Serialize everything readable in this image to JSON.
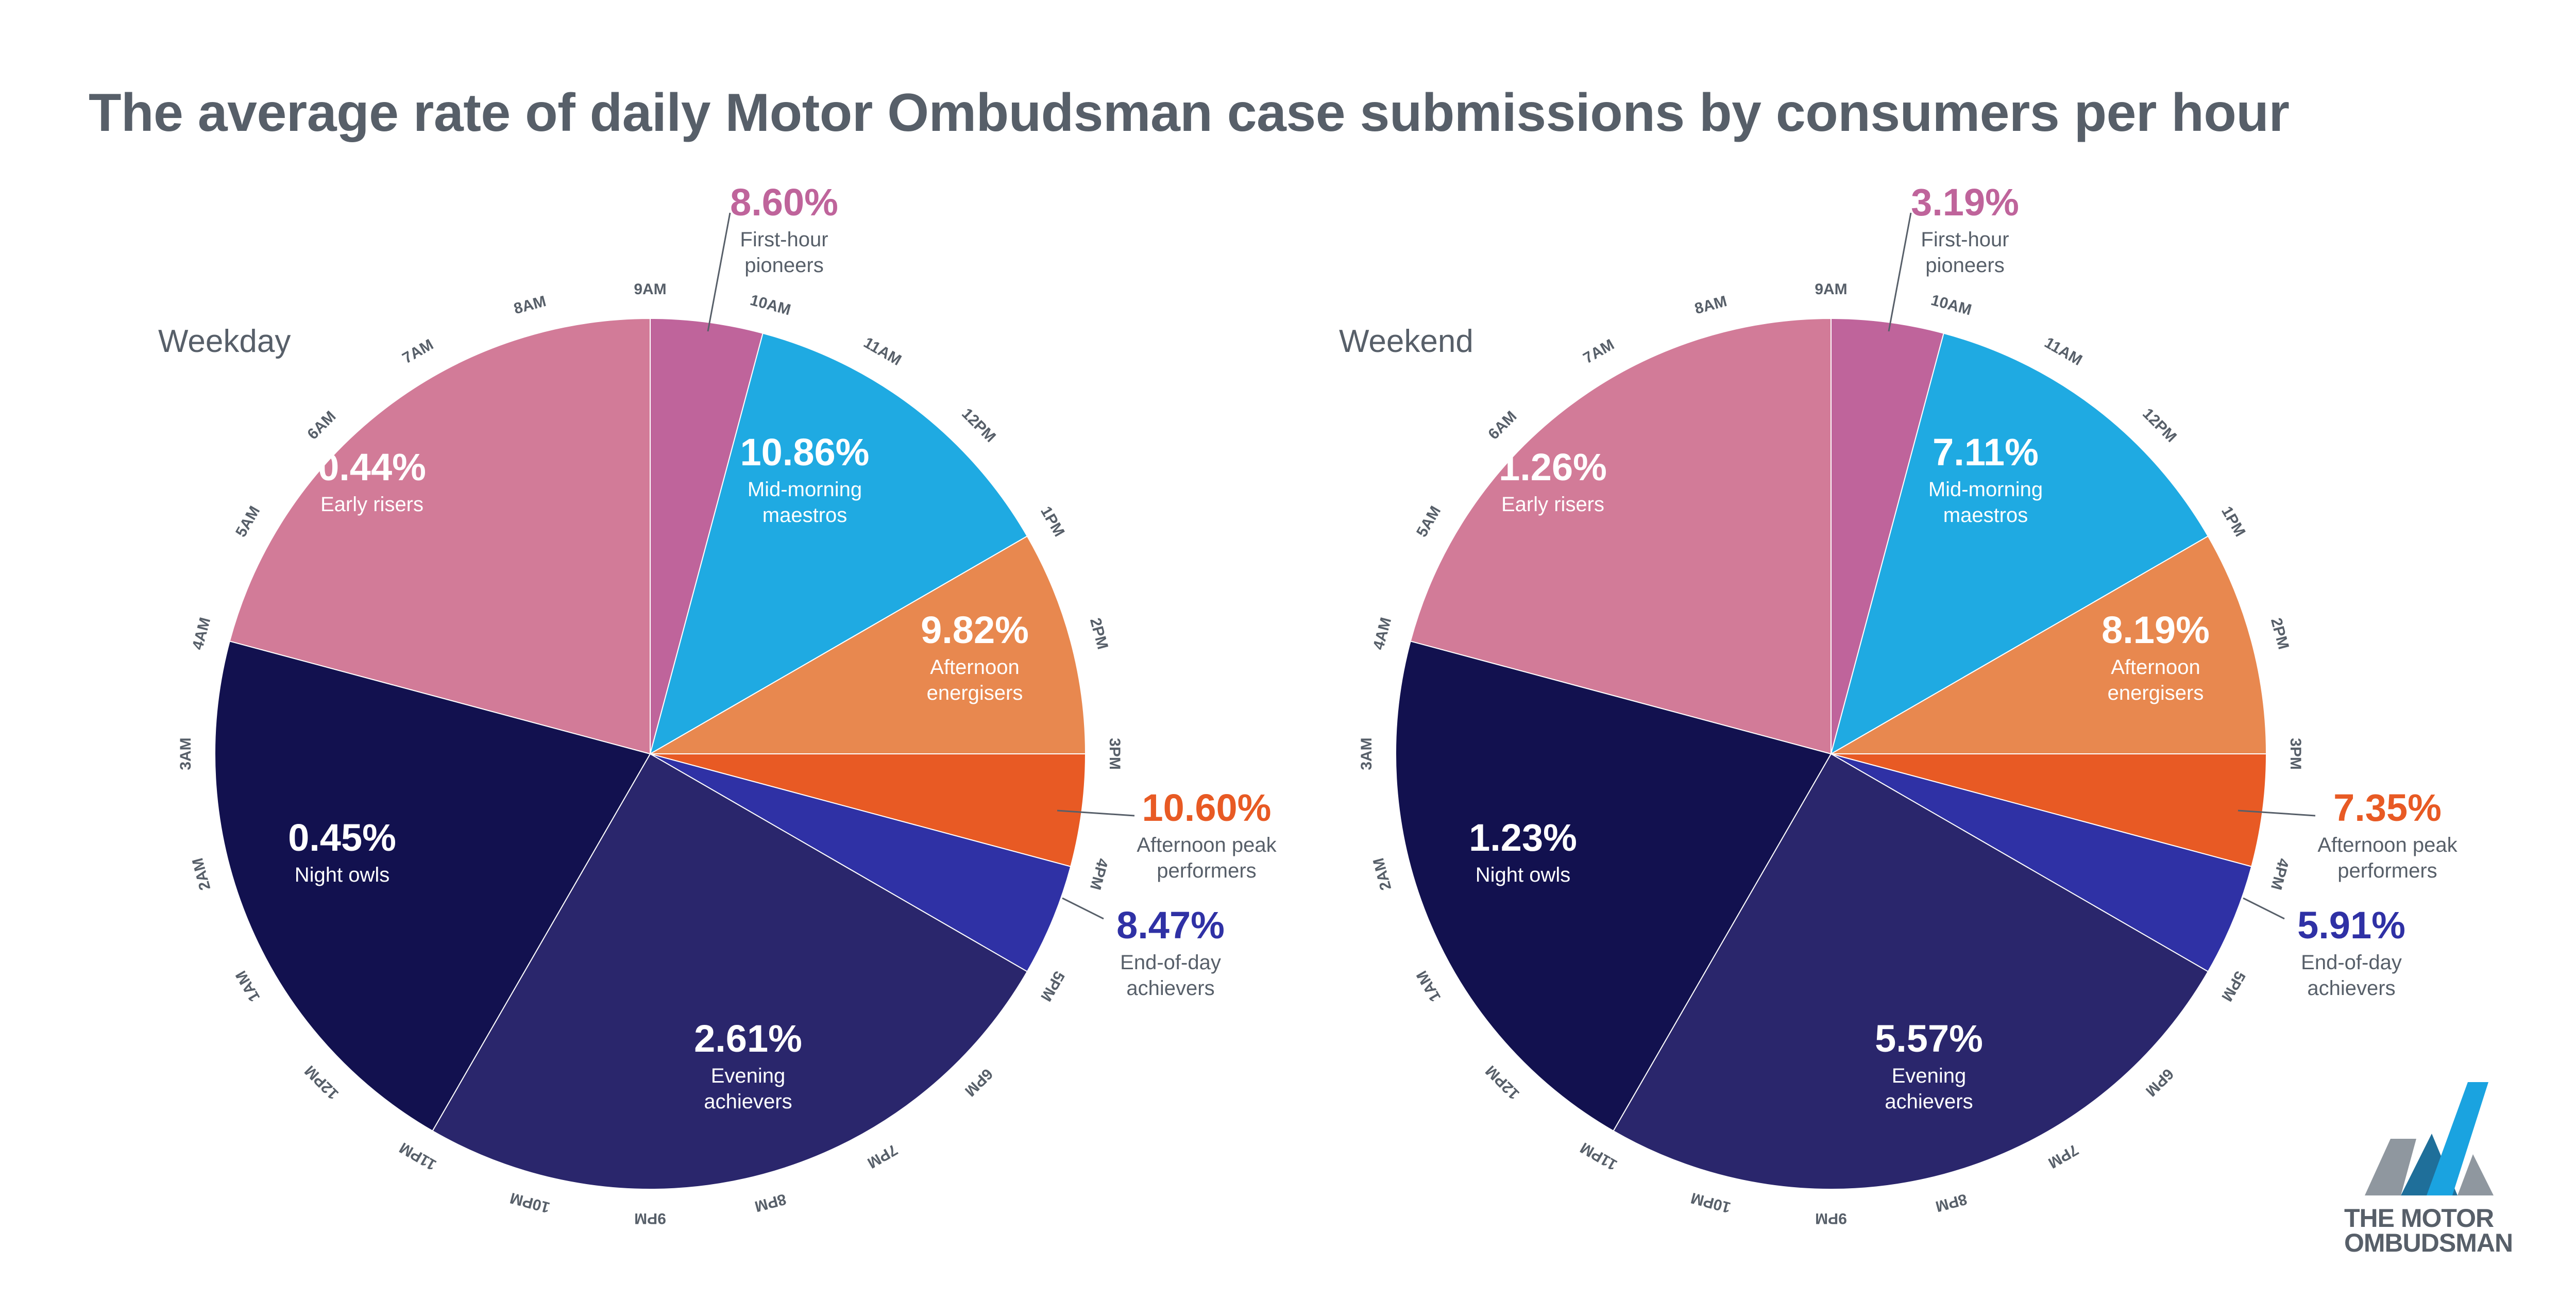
{
  "title": "The average rate of daily Motor Ombudsman case submissions by consumers per hour",
  "logo": {
    "line1": "THE MOTOR",
    "line2": "OMBUDSMAN",
    "colors": [
      "#8f979f",
      "#1aa3e0",
      "#1f6f9a"
    ]
  },
  "hour_labels": [
    "9AM",
    "10AM",
    "11AM",
    "12PM",
    "1PM",
    "2PM",
    "3PM",
    "4PM",
    "5PM",
    "6PM",
    "7PM",
    "8PM",
    "9PM",
    "10PM",
    "11PM",
    "12PM",
    "1AM",
    "2AM",
    "3AM",
    "4AM",
    "5AM",
    "6AM",
    "7AM",
    "8AM"
  ],
  "chart_data": [
    {
      "type": "pie",
      "title": "Weekday",
      "series": [
        {
          "name": "First-hour pioneers",
          "hours": "9AM-10AM",
          "value": 8.6,
          "label": "8.60%",
          "color": "#bf649b"
        },
        {
          "name": "Mid-morning maestros",
          "hours": "10AM-1PM",
          "value": 10.86,
          "label": "10.86%",
          "color": "#1faae2"
        },
        {
          "name": "Afternoon energisers",
          "hours": "1PM-3PM",
          "value": 9.82,
          "label": "9.82%",
          "color": "#e8884f"
        },
        {
          "name": "Afternoon peak performers",
          "hours": "3PM-4PM",
          "value": 10.6,
          "label": "10.60%",
          "color": "#e85a24"
        },
        {
          "name": "End-of-day achievers",
          "hours": "4PM-5PM",
          "value": 8.47,
          "label": "8.47%",
          "color": "#2f31a5"
        },
        {
          "name": "Evening achievers",
          "hours": "5PM-11PM",
          "value": 2.61,
          "label": "2.61%",
          "color": "#2a266c"
        },
        {
          "name": "Night owls",
          "hours": "11PM-4AM",
          "value": 0.45,
          "label": "0.45%",
          "color": "#12114f"
        },
        {
          "name": "Early risers",
          "hours": "4AM-9AM",
          "value": 0.44,
          "label": "0.44%",
          "color": "#d27b98"
        }
      ]
    },
    {
      "type": "pie",
      "title": "Weekend",
      "series": [
        {
          "name": "First-hour pioneers",
          "hours": "9AM-10AM",
          "value": 3.19,
          "label": "3.19%",
          "color": "#bf649b"
        },
        {
          "name": "Mid-morning maestros",
          "hours": "10AM-1PM",
          "value": 7.11,
          "label": "7.11%",
          "color": "#1faae2"
        },
        {
          "name": "Afternoon energisers",
          "hours": "1PM-3PM",
          "value": 8.19,
          "label": "8.19%",
          "color": "#e8884f"
        },
        {
          "name": "Afternoon peak performers",
          "hours": "3PM-4PM",
          "value": 7.35,
          "label": "7.35%",
          "color": "#e85a24"
        },
        {
          "name": "End-of-day achievers",
          "hours": "4PM-5PM",
          "value": 5.91,
          "label": "5.91%",
          "color": "#2f31a5"
        },
        {
          "name": "Evening achievers",
          "hours": "5PM-11PM",
          "value": 5.57,
          "label": "5.57%",
          "color": "#2a266c"
        },
        {
          "name": "Night owls",
          "hours": "11PM-4AM",
          "value": 1.23,
          "label": "1.23%",
          "color": "#12114f"
        },
        {
          "name": "Early risers",
          "hours": "4AM-9AM",
          "value": 1.26,
          "label": "1.26%",
          "color": "#d27b98"
        }
      ]
    }
  ]
}
